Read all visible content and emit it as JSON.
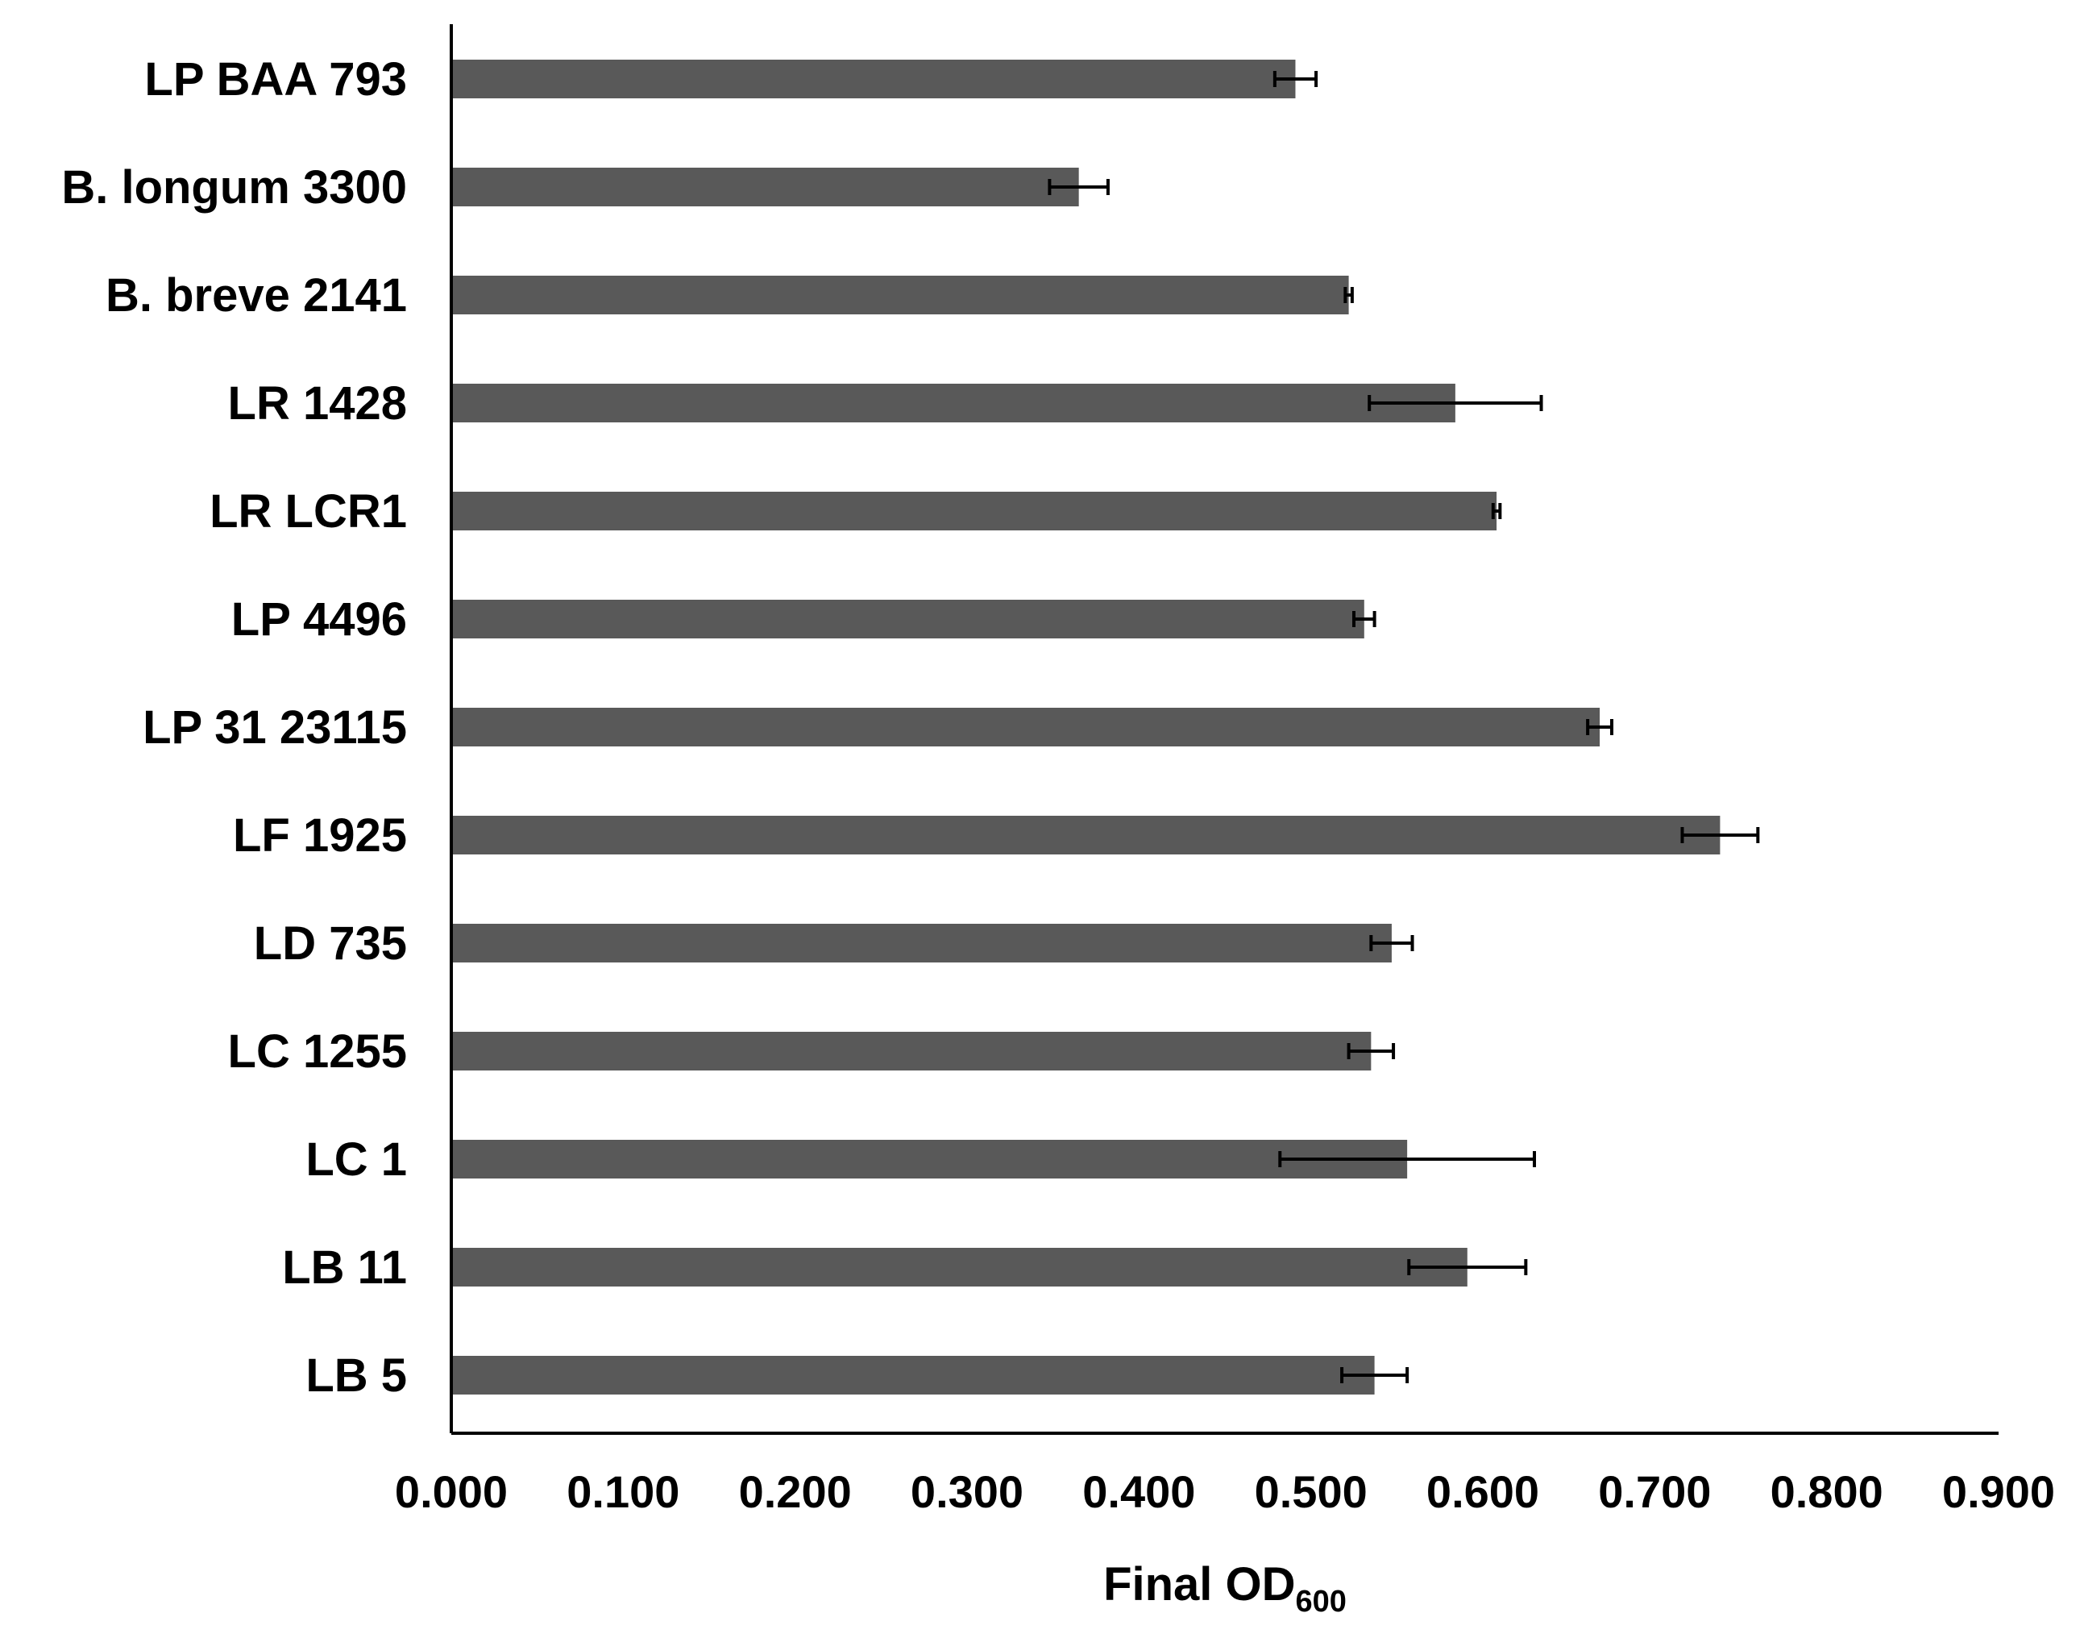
{
  "chart_data": {
    "type": "bar",
    "orientation": "horizontal",
    "categories": [
      "LP BAA 793",
      "B. longum 3300",
      "B. breve 2141",
      "LR 1428",
      "LR LCR1",
      "LP 4496",
      "LP 31 23115",
      "LF 1925",
      "LD 735",
      "LC 1255",
      "LC 1",
      "LB 11",
      "LB 5"
    ],
    "values": [
      0.491,
      0.365,
      0.522,
      0.584,
      0.608,
      0.531,
      0.668,
      0.738,
      0.547,
      0.535,
      0.556,
      0.591,
      0.537
    ],
    "errors": [
      0.012,
      0.017,
      0.002,
      0.05,
      0.002,
      0.006,
      0.007,
      0.022,
      0.012,
      0.013,
      0.074,
      0.034,
      0.019
    ],
    "xlabel": {
      "main": "Final OD",
      "sub": "600"
    },
    "ylabel": "",
    "title": "",
    "xlim": [
      0,
      0.9
    ],
    "xticks": [
      "0.000",
      "0.100",
      "0.200",
      "0.300",
      "0.400",
      "0.500",
      "0.600",
      "0.700",
      "0.800",
      "0.900"
    ],
    "bar_color": "#595959",
    "error_bar_color": "#000000",
    "grid": false,
    "legend": "none"
  }
}
